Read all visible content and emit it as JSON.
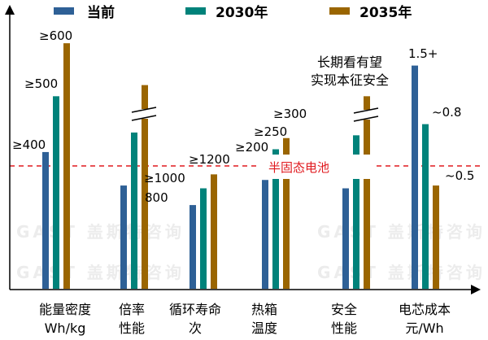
{
  "chart_data": {
    "type": "bar",
    "title": "",
    "legend": {
      "placement": "top",
      "entries": [
        "当前",
        "2030年",
        "2035年"
      ]
    },
    "colors": {
      "当前": "#2e6096",
      "2030年": "#00827a",
      "2035年": "#9a6500",
      "reference_line": "#e0191e"
    },
    "categories": [
      {
        "line1": "能量密度",
        "line2": "Wh/kg"
      },
      {
        "line1": "倍率",
        "line2": "性能"
      },
      {
        "line1": "循环寿命",
        "line2": "次"
      },
      {
        "line1": "热箱",
        "line2": "温度"
      },
      {
        "line1": "安全",
        "line2": "性能"
      },
      {
        "line1": "电芯成本",
        "line2": "元/Wh"
      }
    ],
    "series": [
      {
        "name": "当前",
        "relative_level": [
          0.49,
          0.37,
          0.3,
          0.39,
          0.36,
          0.8
        ],
        "labels": [
          "≥400",
          "",
          "800",
          "≥200",
          "",
          "1.5+"
        ]
      },
      {
        "name": "2030年",
        "relative_level": [
          0.69,
          0.56,
          0.36,
          0.5,
          0.55,
          0.59
        ],
        "labels": [
          "≥500",
          "",
          "≥1000",
          "≥250",
          "",
          "~0.8"
        ]
      },
      {
        "name": "2035年",
        "relative_level": [
          0.88,
          0.73,
          0.41,
          0.54,
          0.69,
          0.37
        ],
        "labels": [
          "≥600",
          "",
          "≥1200",
          "≥300",
          "",
          "~0.5"
        ]
      }
    ],
    "axis_breaks": [
      "倍率",
      "安全"
    ],
    "reference_line": {
      "label": "半固态电池",
      "style": "dashed"
    },
    "annotation": {
      "line1": "长期看有望",
      "line2": "实现本征安全"
    },
    "grid": false,
    "y_axis_ticks": false
  },
  "watermark": "GAST 盖斯特咨询"
}
